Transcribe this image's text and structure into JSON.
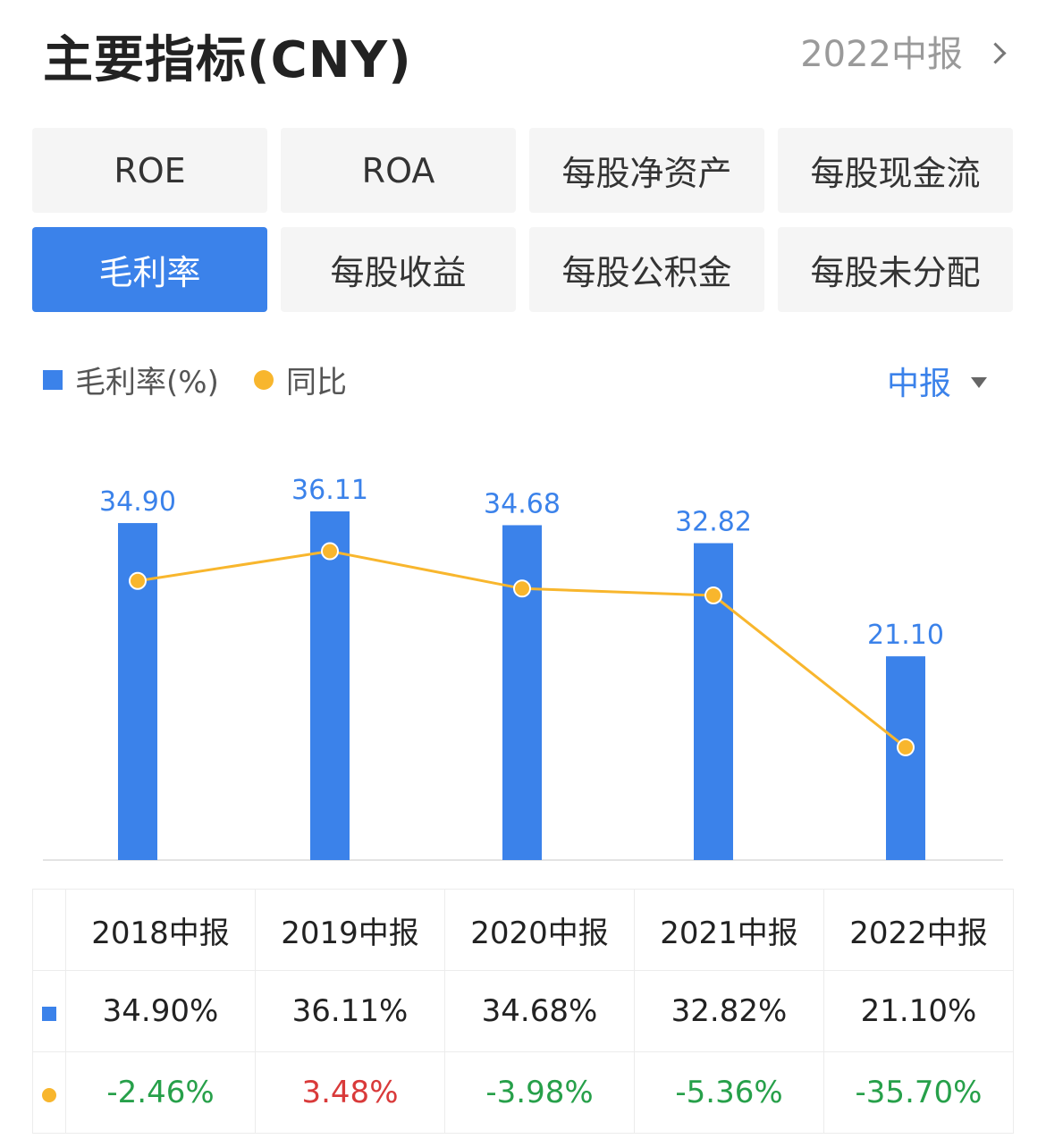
{
  "header": {
    "title": "主要指标(CNY)",
    "report_label": "2022中报"
  },
  "tabs": [
    {
      "label": "ROE",
      "active": false
    },
    {
      "label": "ROA",
      "active": false
    },
    {
      "label": "每股净资产",
      "active": false
    },
    {
      "label": "每股现金流",
      "active": false
    },
    {
      "label": "毛利率",
      "active": true
    },
    {
      "label": "每股收益",
      "active": false
    },
    {
      "label": "每股公积金",
      "active": false
    },
    {
      "label": "每股未分配",
      "active": false
    }
  ],
  "legend": {
    "bar_label": "毛利率(%)",
    "line_label": "同比",
    "period_select": "中报"
  },
  "colors": {
    "bar": "#3b82ea",
    "line": "#f8b62d",
    "bar_label": "#3b82ea",
    "positive": "#d93a3a",
    "negative": "#27a04a"
  },
  "chart_data": {
    "type": "bar",
    "categories": [
      "2018中报",
      "2019中报",
      "2020中报",
      "2021中报",
      "2022中报"
    ],
    "series": [
      {
        "name": "毛利率(%)",
        "type": "bar",
        "values": [
          34.9,
          36.11,
          34.68,
          32.82,
          21.1
        ],
        "labels": [
          "34.90",
          "36.11",
          "34.68",
          "32.82",
          "21.10"
        ]
      },
      {
        "name": "同比",
        "type": "line",
        "values": [
          -2.46,
          3.48,
          -3.98,
          -5.36,
          -35.7
        ]
      }
    ],
    "grid": false
  },
  "table": {
    "headers": [
      "2018中报",
      "2019中报",
      "2020中报",
      "2021中报",
      "2022中报"
    ],
    "bar_row": [
      "34.90%",
      "36.11%",
      "34.68%",
      "32.82%",
      "21.10%"
    ],
    "line_row": [
      "-2.46%",
      "3.48%",
      "-3.98%",
      "-5.36%",
      "-35.70%"
    ]
  }
}
